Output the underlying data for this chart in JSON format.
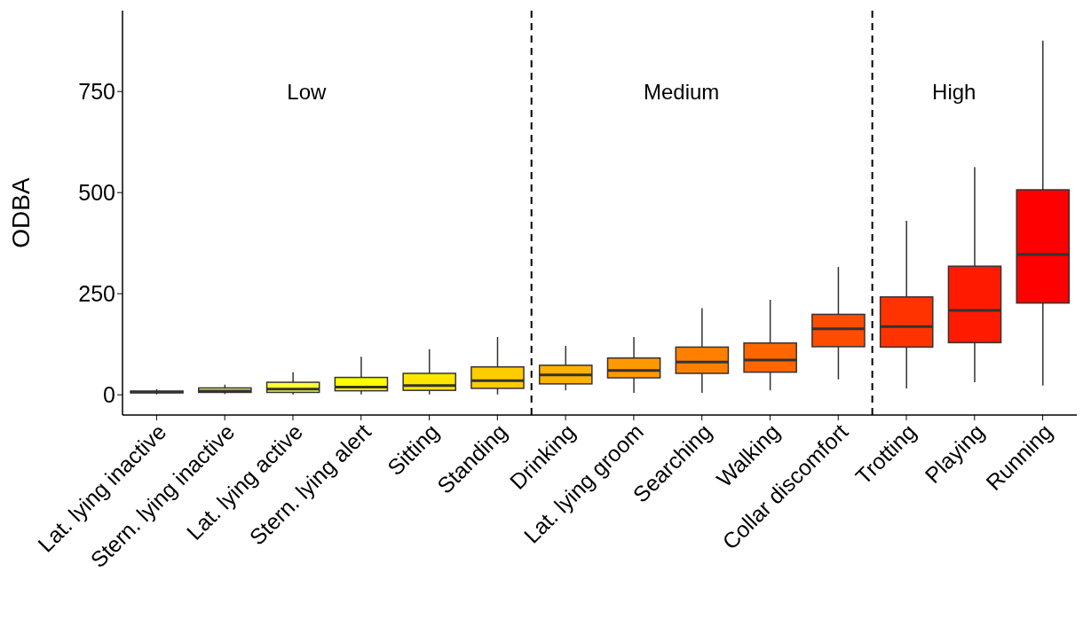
{
  "chart_data": {
    "type": "box",
    "ylabel": "ODBA",
    "categories": [
      "Lat. lying inactive",
      "Stern. lying inactive",
      "Lat. lying active",
      "Stern. lying alert",
      "Sitting",
      "Standing",
      "Drinking",
      "Lat. lying groom",
      "Searching",
      "Walking",
      "Collar discomfort",
      "Trotting",
      "Playing",
      "Running"
    ],
    "colors": [
      "#ffff66",
      "#f5ef6b",
      "#ffff33",
      "#ffff00",
      "#ffe600",
      "#ffcc00",
      "#ffb300",
      "#ff9900",
      "#ff8000",
      "#ff6600",
      "#ff4d00",
      "#ff3300",
      "#ff1a00",
      "#ff0000"
    ],
    "boxes": [
      {
        "low": 1,
        "q1": 5,
        "median": 7,
        "q3": 9,
        "high": 14
      },
      {
        "low": 2,
        "q1": 6,
        "median": 9,
        "q3": 17,
        "high": 25
      },
      {
        "low": 1,
        "q1": 6,
        "median": 14,
        "q3": 31,
        "high": 56
      },
      {
        "low": 1,
        "q1": 10,
        "median": 19,
        "q3": 43,
        "high": 94
      },
      {
        "low": 1,
        "q1": 11,
        "median": 23,
        "q3": 53,
        "high": 113
      },
      {
        "low": 1,
        "q1": 16,
        "median": 35,
        "q3": 69,
        "high": 143
      },
      {
        "low": 11,
        "q1": 27,
        "median": 49,
        "q3": 73,
        "high": 121
      },
      {
        "low": 5,
        "q1": 42,
        "median": 60,
        "q3": 91,
        "high": 143
      },
      {
        "low": 5,
        "q1": 53,
        "median": 81,
        "q3": 118,
        "high": 214
      },
      {
        "low": 11,
        "q1": 56,
        "median": 86,
        "q3": 128,
        "high": 235
      },
      {
        "low": 38,
        "q1": 119,
        "median": 163,
        "q3": 199,
        "high": 316
      },
      {
        "low": 16,
        "q1": 118,
        "median": 169,
        "q3": 242,
        "high": 430
      },
      {
        "low": 31,
        "q1": 129,
        "median": 209,
        "q3": 318,
        "high": 563
      },
      {
        "low": 23,
        "q1": 227,
        "median": 347,
        "q3": 507,
        "high": 876
      }
    ],
    "ylim": [
      -50,
      950
    ],
    "yticks": [
      0,
      250,
      500,
      750
    ],
    "grid": false,
    "annotations": [
      "Low",
      "Medium",
      "High"
    ]
  }
}
